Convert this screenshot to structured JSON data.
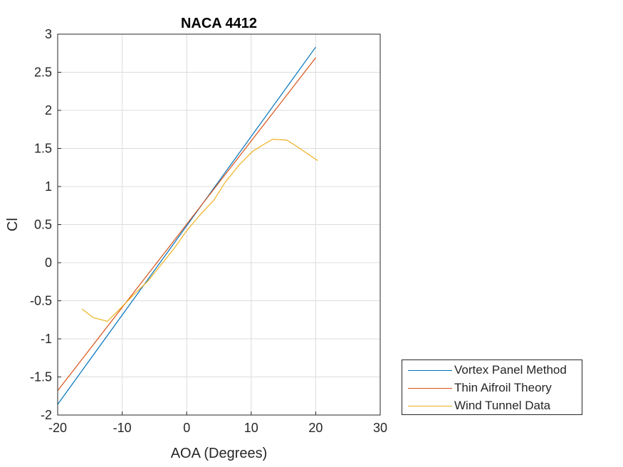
{
  "chart_data": {
    "type": "line",
    "title": "NACA 4412",
    "xlabel": "AOA (Degrees)",
    "ylabel": "Cl",
    "xlim": [
      -20,
      30
    ],
    "ylim": [
      -2,
      3
    ],
    "xticks": [
      -20,
      -10,
      0,
      10,
      20,
      30
    ],
    "yticks": [
      -2,
      -1.5,
      -1,
      -0.5,
      0,
      0.5,
      1,
      1.5,
      2,
      2.5,
      3
    ],
    "grid": true,
    "legend_position": "bottom-right outside",
    "series": [
      {
        "name": "Vortex Panel Method",
        "color": "#0072BD",
        "x": [
          -20,
          20
        ],
        "y": [
          -1.86,
          2.83
        ]
      },
      {
        "name": "Thin Aifroil Theory",
        "color": "#D95319",
        "x": [
          -20,
          20
        ],
        "y": [
          -1.68,
          2.69
        ]
      },
      {
        "name": "Wind Tunnel Data",
        "color": "#EDB120",
        "x": [
          -16.2,
          -14.5,
          -12.3,
          -10.5,
          -8.2,
          -6.0,
          -4.0,
          -2.0,
          0.0,
          2.0,
          4.2,
          6.0,
          8.2,
          10.2,
          11.5,
          13.3,
          15.5,
          17.0,
          20.3
        ],
        "y": [
          -0.61,
          -0.72,
          -0.77,
          -0.62,
          -0.42,
          -0.24,
          -0.03,
          0.18,
          0.42,
          0.62,
          0.82,
          1.06,
          1.29,
          1.46,
          1.53,
          1.62,
          1.61,
          1.53,
          1.34
        ]
      }
    ]
  }
}
